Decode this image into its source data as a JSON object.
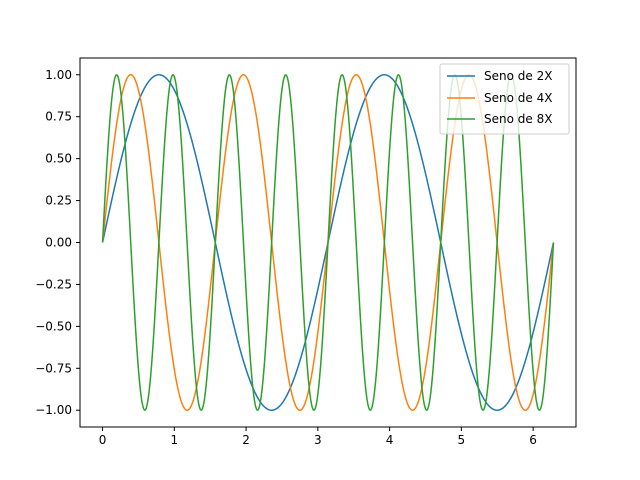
{
  "chart_data": {
    "type": "line",
    "title": "",
    "xlabel": "",
    "ylabel": "",
    "xlim": [
      -0.31416,
      6.59734
    ],
    "ylim": [
      -1.1,
      1.1
    ],
    "x_range": [
      0,
      6.283185307
    ],
    "x_ticks": [
      0,
      1,
      2,
      3,
      4,
      5,
      6
    ],
    "y_ticks": [
      -1.0,
      -0.75,
      -0.5,
      -0.25,
      0.0,
      0.25,
      0.5,
      0.75,
      1.0
    ],
    "x_tick_labels": [
      "0",
      "1",
      "2",
      "3",
      "4",
      "5",
      "6"
    ],
    "y_tick_labels": [
      "−1.00",
      "−0.75",
      "−0.50",
      "−0.25",
      "0.00",
      "0.25",
      "0.50",
      "0.75",
      "1.00"
    ],
    "grid": false,
    "legend_position": "upper right",
    "series": [
      {
        "name": "Seno de 2X",
        "function": "sin(2x)",
        "color": "#1f77b4"
      },
      {
        "name": "Seno de 4X",
        "function": "sin(4x)",
        "color": "#ff7f0e"
      },
      {
        "name": "Seno de 8X",
        "function": "sin(8x)",
        "color": "#2ca02c"
      }
    ]
  }
}
